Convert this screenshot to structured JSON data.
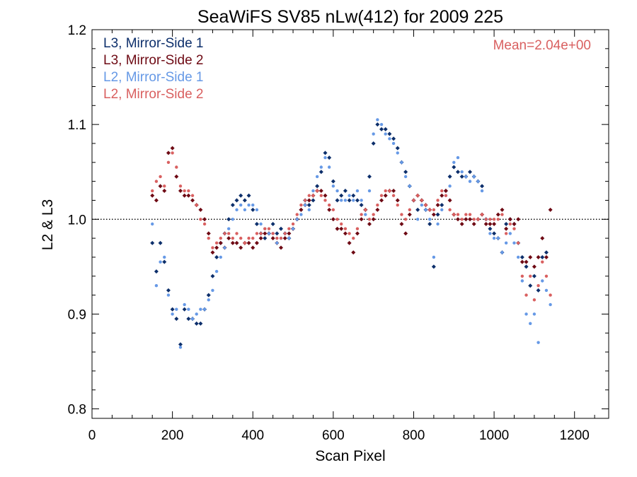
{
  "chart_data": {
    "type": "scatter",
    "title": "SeaWiFS SV85 nLw(412) for 2009 225",
    "xlabel": "Scan Pixel",
    "ylabel": "L2 & L3",
    "xlim": [
      0,
      1285
    ],
    "ylim": [
      0.79,
      1.2
    ],
    "xticks": [
      "0",
      "200",
      "400",
      "600",
      "800",
      "1000",
      "1200"
    ],
    "yticks": [
      "0.8",
      "0.9",
      "1.0",
      "1.1",
      "1.2"
    ],
    "reference_line": 1.0,
    "annotation": "Mean=2.04e+00",
    "annotation_color": "#d96060",
    "legend_position": "top-left",
    "series": [
      {
        "name": "L3, Mirror-Side 1",
        "color": "#0d2f6b",
        "marker": "diamond",
        "x": [
          150,
          160,
          170,
          180,
          190,
          200,
          210,
          220,
          230,
          240,
          250,
          260,
          270,
          280,
          290,
          300,
          310,
          320,
          330,
          340,
          350,
          360,
          370,
          380,
          390,
          400,
          410,
          420,
          430,
          440,
          450,
          460,
          470,
          480,
          490,
          500,
          510,
          520,
          530,
          540,
          550,
          560,
          570,
          580,
          590,
          600,
          610,
          620,
          630,
          640,
          650,
          660,
          670,
          680,
          690,
          700,
          710,
          720,
          730,
          740,
          750,
          760,
          770,
          780,
          790,
          800,
          810,
          820,
          830,
          840,
          850,
          860,
          870,
          880,
          890,
          900,
          910,
          920,
          930,
          940,
          950,
          960,
          970,
          980,
          990,
          1000,
          1010,
          1020,
          1030,
          1040,
          1050,
          1060,
          1070,
          1080,
          1090,
          1100,
          1110,
          1120,
          1130
        ],
        "y": [
          0.975,
          0.945,
          0.975,
          0.955,
          0.925,
          0.905,
          0.895,
          0.868,
          0.905,
          0.895,
          0.895,
          0.89,
          0.89,
          0.905,
          0.92,
          0.94,
          0.96,
          0.975,
          0.985,
          1.0,
          1.015,
          1.02,
          1.025,
          1.02,
          1.025,
          1.01,
          0.995,
          0.985,
          0.98,
          0.985,
          0.995,
          0.985,
          0.99,
          0.985,
          0.98,
          0.99,
          1.0,
          1.01,
          1.02,
          1.015,
          1.02,
          1.035,
          1.05,
          1.07,
          1.065,
          1.04,
          1.02,
          1.025,
          1.03,
          1.02,
          1.025,
          1.02,
          1.015,
          1.01,
          1.045,
          1.08,
          1.1,
          1.095,
          1.095,
          1.09,
          1.085,
          1.075,
          1.06,
          1.05,
          1.035,
          1.02,
          1.01,
          1.02,
          1.01,
          0.995,
          0.95,
          1.005,
          1.015,
          1.03,
          1.045,
          1.055,
          1.05,
          1.045,
          1.045,
          1.05,
          1.045,
          1.04,
          1.035,
          1.0,
          0.99,
          0.985,
          0.98,
          0.965,
          0.995,
          1.0,
          0.995,
          0.975,
          0.96,
          0.95,
          0.93,
          0.94,
          0.925,
          0.96,
          0.965
        ]
      },
      {
        "name": "L3, Mirror-Side 2",
        "color": "#6e0a14",
        "marker": "diamond",
        "x": [
          150,
          160,
          170,
          180,
          190,
          200,
          210,
          220,
          230,
          240,
          250,
          260,
          270,
          280,
          290,
          300,
          310,
          320,
          330,
          340,
          350,
          360,
          370,
          380,
          390,
          400,
          410,
          420,
          430,
          440,
          450,
          460,
          470,
          480,
          490,
          500,
          510,
          520,
          530,
          540,
          550,
          560,
          570,
          580,
          590,
          600,
          610,
          620,
          630,
          640,
          650,
          660,
          670,
          680,
          690,
          700,
          710,
          720,
          730,
          740,
          750,
          760,
          770,
          780,
          790,
          800,
          810,
          820,
          830,
          840,
          850,
          860,
          870,
          880,
          890,
          900,
          910,
          920,
          930,
          940,
          950,
          960,
          970,
          980,
          990,
          1000,
          1010,
          1020,
          1030,
          1040,
          1050,
          1060,
          1070,
          1080,
          1090,
          1100,
          1110,
          1120,
          1130,
          1140
        ],
        "y": [
          1.025,
          1.02,
          1.035,
          1.03,
          1.07,
          1.075,
          1.045,
          1.03,
          1.025,
          1.025,
          1.02,
          1.015,
          1.01,
          1.0,
          0.985,
          0.965,
          0.97,
          0.975,
          0.97,
          0.98,
          0.975,
          0.975,
          0.97,
          0.975,
          0.975,
          0.97,
          0.975,
          0.98,
          0.985,
          0.985,
          0.98,
          0.975,
          0.97,
          0.98,
          0.985,
          0.99,
          1.0,
          1.01,
          1.015,
          1.02,
          1.025,
          1.03,
          1.03,
          1.025,
          1.01,
          1.0,
          0.99,
          0.99,
          0.985,
          0.975,
          0.965,
          0.985,
          1.0,
          1.01,
          0.995,
          1.0,
          1.01,
          1.02,
          1.025,
          1.03,
          1.03,
          1.02,
          0.995,
          0.985,
          1.005,
          1.02,
          1.025,
          1.02,
          1.015,
          1.01,
          1.005,
          1.015,
          1.025,
          1.03,
          1.02,
          1.005,
          1.0,
          0.995,
          1.0,
          1.0,
          0.995,
          1.0,
          1.005,
          0.995,
          0.995,
          0.995,
          1.005,
          1.01,
          0.99,
          1.0,
          0.995,
          1.0,
          0.955,
          0.955,
          0.96,
          0.95,
          0.96,
          0.98,
          0.96,
          1.01
        ]
      },
      {
        "name": "L2, Mirror-Side 1",
        "color": "#6699e6",
        "marker": "dot",
        "x": [
          150,
          160,
          170,
          180,
          190,
          200,
          210,
          220,
          230,
          240,
          250,
          260,
          270,
          280,
          290,
          300,
          310,
          320,
          330,
          340,
          350,
          360,
          370,
          380,
          390,
          400,
          410,
          420,
          430,
          440,
          450,
          460,
          470,
          480,
          490,
          500,
          510,
          520,
          530,
          540,
          550,
          560,
          570,
          580,
          590,
          600,
          610,
          620,
          630,
          640,
          650,
          660,
          670,
          680,
          690,
          700,
          710,
          720,
          730,
          740,
          750,
          760,
          770,
          780,
          790,
          800,
          810,
          820,
          830,
          840,
          850,
          860,
          870,
          880,
          890,
          900,
          910,
          920,
          930,
          940,
          950,
          960,
          970,
          980,
          990,
          1000,
          1010,
          1020,
          1030,
          1040,
          1050,
          1060,
          1070,
          1080,
          1090,
          1100,
          1110,
          1120,
          1130,
          1140
        ],
        "y": [
          0.995,
          0.93,
          0.955,
          0.96,
          0.92,
          0.9,
          0.905,
          0.865,
          0.91,
          0.905,
          0.895,
          0.9,
          0.905,
          0.905,
          0.915,
          0.925,
          0.945,
          0.96,
          0.97,
          0.99,
          1.0,
          1.01,
          1.015,
          1.01,
          1.015,
          1.015,
          1.01,
          0.995,
          0.99,
          0.985,
          0.985,
          0.975,
          0.98,
          0.985,
          0.98,
          0.99,
          1.0,
          1.005,
          1.015,
          1.01,
          1.03,
          1.045,
          1.055,
          1.065,
          1.055,
          1.035,
          1.03,
          1.02,
          1.02,
          1.025,
          1.02,
          1.03,
          1.02,
          1.005,
          1.03,
          1.09,
          1.105,
          1.1,
          1.09,
          1.085,
          1.08,
          1.07,
          1.06,
          1.045,
          1.035,
          1.02,
          1.0,
          1.015,
          1.01,
          1.0,
          0.96,
          0.995,
          1.01,
          1.025,
          1.035,
          1.06,
          1.065,
          1.05,
          1.045,
          1.04,
          1.045,
          1.04,
          1.03,
          1.0,
          0.985,
          0.98,
          0.98,
          0.965,
          0.975,
          0.985,
          0.975,
          0.96,
          0.935,
          0.9,
          0.89,
          0.9,
          0.87,
          0.935,
          0.925,
          0.91
        ]
      },
      {
        "name": "L2, Mirror-Side 2",
        "color": "#d96060",
        "marker": "dot",
        "x": [
          150,
          160,
          170,
          180,
          190,
          200,
          210,
          220,
          230,
          240,
          250,
          260,
          270,
          280,
          290,
          300,
          310,
          320,
          330,
          340,
          350,
          360,
          370,
          380,
          390,
          400,
          410,
          420,
          430,
          440,
          450,
          460,
          470,
          480,
          490,
          500,
          510,
          520,
          530,
          540,
          550,
          560,
          570,
          580,
          590,
          600,
          610,
          620,
          630,
          640,
          650,
          660,
          670,
          680,
          690,
          700,
          710,
          720,
          730,
          740,
          750,
          760,
          770,
          780,
          790,
          800,
          810,
          820,
          830,
          840,
          850,
          860,
          870,
          880,
          890,
          900,
          910,
          920,
          930,
          940,
          950,
          960,
          970,
          980,
          990,
          1000,
          1010,
          1020,
          1030,
          1040,
          1050,
          1060,
          1070,
          1080,
          1090,
          1100,
          1110,
          1120,
          1130,
          1140
        ],
        "y": [
          1.03,
          1.04,
          1.045,
          1.035,
          1.06,
          1.07,
          1.055,
          1.035,
          1.03,
          1.03,
          1.025,
          1.015,
          1.0,
          0.995,
          0.98,
          0.97,
          0.975,
          0.98,
          0.985,
          0.985,
          0.98,
          0.985,
          0.98,
          0.975,
          0.98,
          0.98,
          0.985,
          0.985,
          0.99,
          0.99,
          0.985,
          0.98,
          0.98,
          0.985,
          0.99,
          0.995,
          1.005,
          1.015,
          1.02,
          1.025,
          1.025,
          1.03,
          1.025,
          1.02,
          1.015,
          1.01,
          1.0,
          0.995,
          0.99,
          0.985,
          0.98,
          0.99,
          1.005,
          1.01,
          1.0,
          1.005,
          1.015,
          1.025,
          1.03,
          1.03,
          1.025,
          1.015,
          1.005,
          1.0,
          1.01,
          1.02,
          1.025,
          1.02,
          1.015,
          1.01,
          1.01,
          1.02,
          1.03,
          1.025,
          1.01,
          1.005,
          1.005,
          1.0,
          1.005,
          1.005,
          1.0,
          1.0,
          1.005,
          1.0,
          1.0,
          1.0,
          1.0,
          1.005,
          0.985,
          0.995,
          0.99,
          0.975,
          0.94,
          0.92,
          0.94,
          0.915,
          0.93,
          0.955,
          0.94,
          0.92
        ]
      }
    ]
  }
}
